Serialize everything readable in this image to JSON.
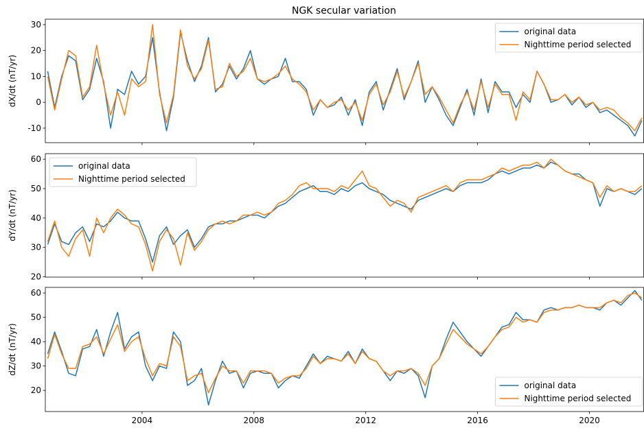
{
  "chart_data": [
    {
      "type": "line",
      "title": "NGK secular variation",
      "ylabel": "dX/dt (nT/yr)",
      "legend": "upper right",
      "x": [
        2000.625,
        2000.875,
        2001.125,
        2001.375,
        2001.625,
        2001.875,
        2002.125,
        2002.375,
        2002.625,
        2002.875,
        2003.125,
        2003.375,
        2003.625,
        2003.875,
        2004.125,
        2004.375,
        2004.625,
        2004.875,
        2005.125,
        2005.375,
        2005.625,
        2005.875,
        2006.125,
        2006.375,
        2006.625,
        2006.875,
        2007.125,
        2007.375,
        2007.625,
        2007.875,
        2008.125,
        2008.375,
        2008.625,
        2008.875,
        2009.125,
        2009.375,
        2009.625,
        2009.875,
        2010.125,
        2010.375,
        2010.625,
        2010.875,
        2011.125,
        2011.375,
        2011.625,
        2011.875,
        2012.125,
        2012.375,
        2012.625,
        2012.875,
        2013.125,
        2013.375,
        2013.625,
        2013.875,
        2014.125,
        2014.375,
        2014.625,
        2014.875,
        2015.125,
        2015.375,
        2015.625,
        2015.875,
        2016.125,
        2016.375,
        2016.625,
        2016.875,
        2017.125,
        2017.375,
        2017.625,
        2017.875,
        2018.125,
        2018.375,
        2018.625,
        2018.875,
        2019.125,
        2019.375,
        2019.625,
        2019.875,
        2020.125,
        2020.375,
        2020.625,
        2020.875,
        2021.125,
        2021.375,
        2021.625,
        2021.875
      ],
      "xlim": [
        2000.54,
        2021.94
      ],
      "xticks": [
        2004,
        2008,
        2012,
        2016,
        2020
      ],
      "ylim": [
        -15.6,
        32.1
      ],
      "yticks": [
        -10,
        0,
        10,
        20,
        30
      ],
      "series": [
        {
          "name": "original data",
          "color": "#1f77b4",
          "values": [
            12,
            -2,
            10,
            18,
            16,
            1,
            5,
            17,
            8,
            -10,
            5,
            3,
            12,
            7,
            10,
            25,
            4,
            -11,
            2,
            27,
            16,
            8,
            14,
            25,
            4,
            7,
            14,
            9,
            13,
            20,
            9,
            7,
            9,
            10,
            17,
            8,
            8,
            5,
            -5,
            1,
            -2,
            -1,
            2,
            -5,
            1,
            -9,
            4,
            8,
            -3,
            5,
            13,
            1,
            8,
            16,
            0,
            6,
            1,
            -5,
            -9,
            -2,
            5,
            -5,
            9,
            -4,
            8,
            4,
            4,
            -2,
            3,
            0,
            12,
            7,
            0,
            1,
            3,
            -1,
            2,
            -2,
            0,
            -4,
            -3,
            -5,
            -7,
            -9,
            -13,
            -7
          ]
        },
        {
          "name": "Nighttime period selected",
          "color": "#ff7f0e",
          "values": [
            10,
            -3,
            9,
            20,
            18,
            2,
            6,
            22,
            7,
            -5,
            4,
            -5,
            9,
            6,
            8,
            30,
            3,
            -8,
            3,
            28,
            14,
            9,
            13,
            24,
            5,
            6,
            15,
            10,
            12,
            17,
            9,
            8,
            9,
            11,
            14,
            9,
            7,
            4,
            -3,
            1,
            -2,
            0,
            1,
            -3,
            0,
            -7,
            3,
            7,
            -1,
            4,
            12,
            2,
            8,
            15,
            3,
            6,
            2,
            -3,
            -8,
            -1,
            4,
            -3,
            8,
            -2,
            7,
            3,
            3,
            -7,
            4,
            1,
            12,
            7,
            1,
            1,
            3,
            0,
            2,
            -1,
            0,
            -3,
            -2,
            -3,
            -6,
            -8,
            -11,
            -6
          ]
        }
      ]
    },
    {
      "type": "line",
      "ylabel": "dY/dt (nT/yr)",
      "legend": "upper left",
      "x": [
        2000.625,
        2000.875,
        2001.125,
        2001.375,
        2001.625,
        2001.875,
        2002.125,
        2002.375,
        2002.625,
        2002.875,
        2003.125,
        2003.375,
        2003.625,
        2003.875,
        2004.125,
        2004.375,
        2004.625,
        2004.875,
        2005.125,
        2005.375,
        2005.625,
        2005.875,
        2006.125,
        2006.375,
        2006.625,
        2006.875,
        2007.125,
        2007.375,
        2007.625,
        2007.875,
        2008.125,
        2008.375,
        2008.625,
        2008.875,
        2009.125,
        2009.375,
        2009.625,
        2009.875,
        2010.125,
        2010.375,
        2010.625,
        2010.875,
        2011.125,
        2011.375,
        2011.625,
        2011.875,
        2012.125,
        2012.375,
        2012.625,
        2012.875,
        2013.125,
        2013.375,
        2013.625,
        2013.875,
        2014.125,
        2014.375,
        2014.625,
        2014.875,
        2015.125,
        2015.375,
        2015.625,
        2015.875,
        2016.125,
        2016.375,
        2016.625,
        2016.875,
        2017.125,
        2017.375,
        2017.625,
        2017.875,
        2018.125,
        2018.375,
        2018.625,
        2018.875,
        2019.125,
        2019.375,
        2019.625,
        2019.875,
        2020.125,
        2020.375,
        2020.625,
        2020.875,
        2021.125,
        2021.375,
        2021.625,
        2021.875
      ],
      "xlim": [
        2000.54,
        2021.94
      ],
      "xticks": [
        2004,
        2008,
        2012,
        2016,
        2020
      ],
      "ylim": [
        19.9,
        61.9
      ],
      "yticks": [
        20,
        30,
        40,
        50,
        60
      ],
      "series": [
        {
          "name": "original data",
          "color": "#1f77b4",
          "values": [
            31,
            38,
            32,
            31,
            35,
            37,
            32,
            38,
            37,
            39,
            42,
            40,
            39,
            39,
            33,
            25,
            34,
            37,
            31,
            34,
            36,
            30,
            33,
            37,
            38,
            38,
            39,
            39,
            40,
            41,
            41,
            40,
            42,
            44,
            45,
            47,
            49,
            50,
            51,
            49,
            49,
            48,
            50,
            49,
            51,
            52,
            50,
            49,
            48,
            46,
            45,
            44,
            43,
            46,
            47,
            48,
            49,
            50,
            49,
            51,
            52,
            52,
            52,
            53,
            55,
            56,
            55,
            56,
            57,
            57,
            58,
            57,
            59,
            58,
            56,
            55,
            55,
            53,
            52,
            44,
            50,
            49,
            50,
            49,
            48,
            50
          ]
        },
        {
          "name": "Nighttime period selected",
          "color": "#ff7f0e",
          "values": [
            32,
            39,
            30,
            27,
            33,
            36,
            27,
            40,
            35,
            40,
            43,
            41,
            38,
            37,
            31,
            22,
            32,
            36,
            33,
            24,
            35,
            29,
            32,
            36,
            38,
            39,
            38,
            39,
            41,
            41,
            42,
            41,
            42,
            45,
            46,
            48,
            51,
            52,
            50,
            50,
            50,
            49,
            51,
            50,
            53,
            56,
            51,
            50,
            47,
            44,
            46,
            45,
            42,
            47,
            48,
            49,
            50,
            51,
            49,
            52,
            53,
            53,
            53,
            54,
            55,
            57,
            56,
            57,
            58,
            58,
            59,
            57,
            60,
            58,
            56,
            55,
            54,
            53,
            52,
            47,
            51,
            49,
            50,
            49,
            49,
            51
          ]
        }
      ]
    },
    {
      "type": "line",
      "ylabel": "dZ/dt (nT/yr)",
      "legend": "lower right",
      "x": [
        2000.625,
        2000.875,
        2001.125,
        2001.375,
        2001.625,
        2001.875,
        2002.125,
        2002.375,
        2002.625,
        2002.875,
        2003.125,
        2003.375,
        2003.625,
        2003.875,
        2004.125,
        2004.375,
        2004.625,
        2004.875,
        2005.125,
        2005.375,
        2005.625,
        2005.875,
        2006.125,
        2006.375,
        2006.625,
        2006.875,
        2007.125,
        2007.375,
        2007.625,
        2007.875,
        2008.125,
        2008.375,
        2008.625,
        2008.875,
        2009.125,
        2009.375,
        2009.625,
        2009.875,
        2010.125,
        2010.375,
        2010.625,
        2010.875,
        2011.125,
        2011.375,
        2011.625,
        2011.875,
        2012.125,
        2012.375,
        2012.625,
        2012.875,
        2013.125,
        2013.375,
        2013.625,
        2013.875,
        2014.125,
        2014.375,
        2014.625,
        2014.875,
        2015.125,
        2015.375,
        2015.625,
        2015.875,
        2016.125,
        2016.375,
        2016.625,
        2016.875,
        2017.125,
        2017.375,
        2017.625,
        2017.875,
        2018.125,
        2018.375,
        2018.625,
        2018.875,
        2019.125,
        2019.375,
        2019.625,
        2019.875,
        2020.125,
        2020.375,
        2020.625,
        2020.875,
        2021.125,
        2021.375,
        2021.625,
        2021.875
      ],
      "xlim": [
        2000.54,
        2021.94
      ],
      "xticks": [
        2004,
        2008,
        2012,
        2016,
        2020
      ],
      "ylim": [
        11.3,
        62.3
      ],
      "yticks": [
        20,
        30,
        40,
        50,
        60
      ],
      "series": [
        {
          "name": "original data",
          "color": "#1f77b4",
          "values": [
            35,
            44,
            36,
            27,
            26,
            37,
            38,
            45,
            34,
            44,
            52,
            37,
            42,
            44,
            30,
            24,
            30,
            29,
            44,
            40,
            22,
            24,
            29,
            14,
            24,
            32,
            27,
            28,
            21,
            27,
            28,
            27,
            27,
            21,
            24,
            26,
            25,
            30,
            35,
            31,
            34,
            33,
            32,
            36,
            31,
            37,
            33,
            32,
            28,
            24,
            28,
            27,
            29,
            26,
            17,
            30,
            33,
            41,
            48,
            44,
            40,
            37,
            34,
            38,
            42,
            46,
            47,
            52,
            49,
            49,
            48,
            53,
            54,
            53,
            54,
            54,
            55,
            54,
            54,
            53,
            56,
            57,
            55,
            58,
            61,
            57
          ]
        },
        {
          "name": "Nighttime period selected",
          "color": "#ff7f0e",
          "values": [
            33,
            43,
            35,
            29,
            29,
            38,
            39,
            42,
            35,
            41,
            47,
            36,
            40,
            42,
            33,
            26,
            31,
            30,
            42,
            38,
            24,
            26,
            27,
            19,
            25,
            30,
            28,
            28,
            23,
            28,
            28,
            28,
            27,
            23,
            25,
            26,
            26,
            29,
            34,
            31,
            33,
            33,
            32,
            35,
            31,
            36,
            33,
            32,
            28,
            26,
            28,
            28,
            29,
            27,
            22,
            30,
            33,
            39,
            45,
            42,
            39,
            37,
            35,
            38,
            42,
            45,
            46,
            50,
            48,
            49,
            48,
            52,
            53,
            53,
            54,
            54,
            55,
            54,
            54,
            54,
            56,
            57,
            56,
            59,
            60,
            58
          ]
        }
      ]
    }
  ]
}
